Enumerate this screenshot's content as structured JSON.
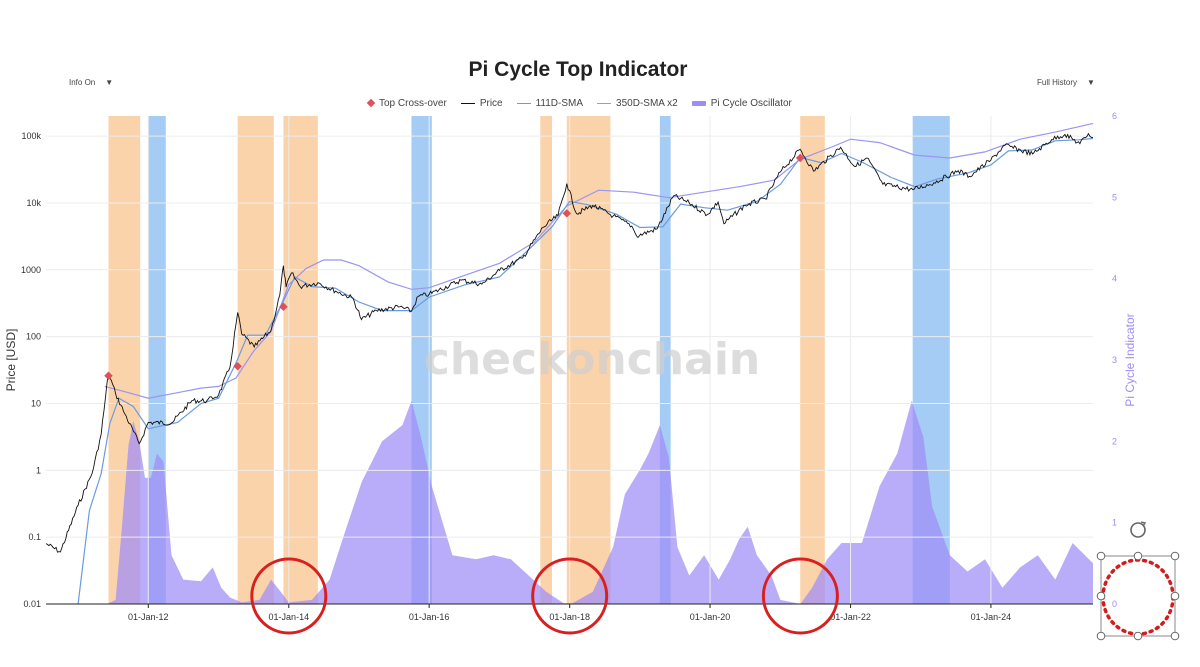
{
  "header": {
    "title": "Pi Cycle Top Indicator",
    "info_dropdown": "Info On",
    "range_dropdown": "Full History",
    "watermark": "checkonchain"
  },
  "chart_data": {
    "type": "line",
    "title": "Pi Cycle Top Indicator",
    "ylabel": "Price [USD]",
    "y2label": "Pi Cycle Indicator",
    "yscale": "log",
    "ylim": [
      0.01,
      200000
    ],
    "y2lim": [
      0,
      6
    ],
    "xlim": [
      "2010-07-18",
      "2025-06-15"
    ],
    "x_ticks": [
      "01-Jan-12",
      "01-Jan-14",
      "01-Jan-16",
      "01-Jan-18",
      "01-Jan-20",
      "01-Jan-22",
      "01-Jan-24"
    ],
    "y_ticks": [
      "0.01",
      "0.1",
      "1",
      "10",
      "100",
      "1000",
      "10k",
      "100k"
    ],
    "y2_ticks": [
      "0",
      "1",
      "2",
      "3",
      "4",
      "5",
      "6"
    ],
    "legend": [
      "Top Cross-over",
      "Price",
      "111D-SMA",
      "350D-SMA x2",
      "Pi Cycle Oscillator"
    ],
    "colors": {
      "price": "#111111",
      "sma111": "#6a9be0",
      "sma350x2": "#9b95f2",
      "oscillator": "#9e8cf7",
      "top_band": "#f9c48f",
      "bottom_band": "#7fb6f0",
      "crossover": "#e0505a",
      "annotation_circle": "#d92020"
    },
    "series": [
      {
        "name": "Price",
        "points": [
          [
            "2010-07-18",
            0.08
          ],
          [
            "2010-10-01",
            0.06
          ],
          [
            "2011-01-01",
            0.3
          ],
          [
            "2011-03-15",
            0.9
          ],
          [
            "2011-05-01",
            3.5
          ],
          [
            "2011-06-08",
            29
          ],
          [
            "2011-07-15",
            14
          ],
          [
            "2011-09-01",
            7
          ],
          [
            "2011-11-15",
            2.5
          ],
          [
            "2012-01-01",
            5.2
          ],
          [
            "2012-05-01",
            5.1
          ],
          [
            "2012-08-15",
            11
          ],
          [
            "2012-11-01",
            11
          ],
          [
            "2013-01-01",
            13.5
          ],
          [
            "2013-03-01",
            35
          ],
          [
            "2013-04-10",
            230
          ],
          [
            "2013-05-01",
            110
          ],
          [
            "2013-07-05",
            70
          ],
          [
            "2013-10-01",
            125
          ],
          [
            "2013-11-15",
            420
          ],
          [
            "2013-12-04",
            1150
          ],
          [
            "2013-12-18",
            550
          ],
          [
            "2014-01-15",
            900
          ],
          [
            "2014-03-01",
            560
          ],
          [
            "2014-06-01",
            640
          ],
          [
            "2014-09-01",
            480
          ],
          [
            "2014-12-01",
            375
          ],
          [
            "2015-01-14",
            180
          ],
          [
            "2015-04-01",
            245
          ],
          [
            "2015-08-01",
            280
          ],
          [
            "2015-10-01",
            240
          ],
          [
            "2015-11-05",
            400
          ],
          [
            "2016-01-01",
            430
          ],
          [
            "2016-06-15",
            700
          ],
          [
            "2016-10-01",
            610
          ],
          [
            "2017-01-01",
            980
          ],
          [
            "2017-05-01",
            1500
          ],
          [
            "2017-08-15",
            4300
          ],
          [
            "2017-11-01",
            6500
          ],
          [
            "2017-12-17",
            19500
          ],
          [
            "2018-02-06",
            6900
          ],
          [
            "2018-05-01",
            9200
          ],
          [
            "2018-08-15",
            6400
          ],
          [
            "2018-11-20",
            4500
          ],
          [
            "2018-12-15",
            3200
          ],
          [
            "2019-04-01",
            4100
          ],
          [
            "2019-06-26",
            12800
          ],
          [
            "2019-09-15",
            10000
          ],
          [
            "2019-12-17",
            6700
          ],
          [
            "2020-02-12",
            10300
          ],
          [
            "2020-03-13",
            4900
          ],
          [
            "2020-07-01",
            9200
          ],
          [
            "2020-10-15",
            11500
          ],
          [
            "2020-12-31",
            29000
          ],
          [
            "2021-04-14",
            63500
          ],
          [
            "2021-06-22",
            30000
          ],
          [
            "2021-11-10",
            68000
          ],
          [
            "2022-01-24",
            35000
          ],
          [
            "2022-03-28",
            47000
          ],
          [
            "2022-06-18",
            19000
          ],
          [
            "2022-11-21",
            15800
          ],
          [
            "2023-03-10",
            20000
          ],
          [
            "2023-07-15",
            30500
          ],
          [
            "2023-09-11",
            25000
          ],
          [
            "2024-01-01",
            44000
          ],
          [
            "2024-03-14",
            73000
          ],
          [
            "2024-08-05",
            54000
          ],
          [
            "2024-11-12",
            89000
          ],
          [
            "2025-01-20",
            106000
          ],
          [
            "2025-04-08",
            77000
          ],
          [
            "2025-05-22",
            109000
          ],
          [
            "2025-06-15",
            95000
          ]
        ]
      },
      {
        "name": "111D-SMA",
        "points": [
          [
            "2011-01-01",
            0.01
          ],
          [
            "2011-03-01",
            0.25
          ],
          [
            "2011-05-01",
            0.9
          ],
          [
            "2011-06-15",
            5
          ],
          [
            "2011-08-01",
            12
          ],
          [
            "2011-10-15",
            9
          ],
          [
            "2012-01-01",
            4.2
          ],
          [
            "2012-06-01",
            5.2
          ],
          [
            "2012-10-01",
            10
          ],
          [
            "2013-01-01",
            12
          ],
          [
            "2013-04-01",
            40
          ],
          [
            "2013-06-01",
            105
          ],
          [
            "2013-09-01",
            105
          ],
          [
            "2013-12-01",
            330
          ],
          [
            "2014-02-01",
            780
          ],
          [
            "2014-05-01",
            560
          ],
          [
            "2014-09-01",
            530
          ],
          [
            "2015-01-01",
            330
          ],
          [
            "2015-05-01",
            245
          ],
          [
            "2015-10-01",
            245
          ],
          [
            "2016-01-01",
            390
          ],
          [
            "2016-07-01",
            590
          ],
          [
            "2017-01-01",
            780
          ],
          [
            "2017-06-01",
            2000
          ],
          [
            "2017-10-01",
            4400
          ],
          [
            "2017-12-31",
            10500
          ],
          [
            "2018-04-01",
            9500
          ],
          [
            "2018-09-01",
            6800
          ],
          [
            "2019-01-01",
            4300
          ],
          [
            "2019-05-01",
            4400
          ],
          [
            "2019-08-01",
            9600
          ],
          [
            "2019-12-01",
            8500
          ],
          [
            "2020-04-01",
            7800
          ],
          [
            "2020-09-01",
            10500
          ],
          [
            "2021-01-01",
            19000
          ],
          [
            "2021-04-15",
            48000
          ],
          [
            "2021-08-01",
            40000
          ],
          [
            "2021-11-15",
            55000
          ],
          [
            "2022-03-01",
            41000
          ],
          [
            "2022-08-01",
            24000
          ],
          [
            "2022-12-01",
            17500
          ],
          [
            "2023-04-01",
            23000
          ],
          [
            "2023-09-01",
            28000
          ],
          [
            "2024-01-01",
            37000
          ],
          [
            "2024-04-01",
            60000
          ],
          [
            "2024-08-01",
            62000
          ],
          [
            "2024-12-01",
            85000
          ],
          [
            "2025-04-01",
            88000
          ],
          [
            "2025-06-15",
            92000
          ]
        ]
      },
      {
        "name": "350D-SMA x2",
        "points": [
          [
            "2011-05-20",
            18
          ],
          [
            "2011-09-01",
            15
          ],
          [
            "2012-01-01",
            12
          ],
          [
            "2012-06-01",
            14.5
          ],
          [
            "2012-10-01",
            17
          ],
          [
            "2013-01-01",
            18
          ],
          [
            "2013-04-01",
            24
          ],
          [
            "2013-07-01",
            60
          ],
          [
            "2013-10-01",
            120
          ],
          [
            "2014-01-01",
            600
          ],
          [
            "2014-04-01",
            1050
          ],
          [
            "2014-07-01",
            1400
          ],
          [
            "2014-10-01",
            1400
          ],
          [
            "2015-01-01",
            1150
          ],
          [
            "2015-06-01",
            660
          ],
          [
            "2015-10-01",
            510
          ],
          [
            "2016-01-01",
            540
          ],
          [
            "2016-07-01",
            820
          ],
          [
            "2017-01-01",
            1250
          ],
          [
            "2017-07-01",
            2600
          ],
          [
            "2017-12-17",
            9000
          ],
          [
            "2018-06-01",
            15500
          ],
          [
            "2018-12-01",
            14500
          ],
          [
            "2019-06-01",
            12000
          ],
          [
            "2019-12-01",
            14500
          ],
          [
            "2020-06-01",
            17500
          ],
          [
            "2020-12-01",
            22000
          ],
          [
            "2021-04-14",
            45000
          ],
          [
            "2021-10-01",
            70000
          ],
          [
            "2022-01-01",
            90000
          ],
          [
            "2022-06-01",
            80000
          ],
          [
            "2022-12-01",
            52000
          ],
          [
            "2023-06-01",
            47000
          ],
          [
            "2023-12-01",
            58000
          ],
          [
            "2024-06-01",
            90000
          ],
          [
            "2024-12-01",
            115000
          ],
          [
            "2025-06-15",
            155000
          ]
        ]
      },
      {
        "name": "Pi Cycle Oscillator",
        "points": [
          [
            "2011-06-01",
            0
          ],
          [
            "2011-07-15",
            0.05
          ],
          [
            "2011-08-15",
            0.9
          ],
          [
            "2011-09-20",
            1.95
          ],
          [
            "2011-10-15",
            2.25
          ],
          [
            "2011-11-15",
            2.0
          ],
          [
            "2011-12-15",
            1.55
          ],
          [
            "2012-01-15",
            1.55
          ],
          [
            "2012-02-15",
            1.85
          ],
          [
            "2012-03-20",
            1.75
          ],
          [
            "2012-05-01",
            0.6
          ],
          [
            "2012-07-01",
            0.3
          ],
          [
            "2012-10-01",
            0.28
          ],
          [
            "2012-12-01",
            0.45
          ],
          [
            "2013-01-15",
            0.2
          ],
          [
            "2013-03-01",
            0.08
          ],
          [
            "2013-05-01",
            0.02
          ],
          [
            "2013-08-01",
            0.05
          ],
          [
            "2013-10-01",
            0.3
          ],
          [
            "2013-11-20",
            0.15
          ],
          [
            "2014-01-01",
            0.02
          ],
          [
            "2014-05-01",
            0.05
          ],
          [
            "2014-08-01",
            0.3
          ],
          [
            "2014-10-15",
            0.85
          ],
          [
            "2015-01-15",
            1.5
          ],
          [
            "2015-05-01",
            2.0
          ],
          [
            "2015-08-15",
            2.2
          ],
          [
            "2015-10-01",
            2.5
          ],
          [
            "2015-11-15",
            2.1
          ],
          [
            "2016-01-15",
            1.45
          ],
          [
            "2016-05-01",
            0.6
          ],
          [
            "2016-09-01",
            0.55
          ],
          [
            "2016-12-01",
            0.6
          ],
          [
            "2017-03-01",
            0.55
          ],
          [
            "2017-06-01",
            0.35
          ],
          [
            "2017-09-01",
            0.15
          ],
          [
            "2017-12-01",
            0.01
          ],
          [
            "2018-01-15",
            0.01
          ],
          [
            "2018-05-01",
            0.15
          ],
          [
            "2018-08-15",
            0.7
          ],
          [
            "2018-10-15",
            1.35
          ],
          [
            "2019-01-01",
            1.65
          ],
          [
            "2019-02-15",
            1.85
          ],
          [
            "2019-04-15",
            2.2
          ],
          [
            "2019-06-01",
            1.8
          ],
          [
            "2019-07-15",
            0.7
          ],
          [
            "2019-09-15",
            0.35
          ],
          [
            "2019-12-01",
            0.6
          ],
          [
            "2020-02-15",
            0.3
          ],
          [
            "2020-04-15",
            0.55
          ],
          [
            "2020-06-01",
            0.8
          ],
          [
            "2020-07-15",
            0.95
          ],
          [
            "2020-09-01",
            0.6
          ],
          [
            "2020-11-15",
            0.35
          ],
          [
            "2021-01-01",
            0.05
          ],
          [
            "2021-04-15",
            0.0
          ],
          [
            "2021-06-15",
            0.2
          ],
          [
            "2021-09-01",
            0.55
          ],
          [
            "2021-11-15",
            0.75
          ],
          [
            "2022-03-01",
            0.75
          ],
          [
            "2022-06-01",
            1.45
          ],
          [
            "2022-09-01",
            1.85
          ],
          [
            "2022-11-15",
            2.5
          ],
          [
            "2023-01-15",
            2.05
          ],
          [
            "2023-03-01",
            1.2
          ],
          [
            "2023-06-01",
            0.6
          ],
          [
            "2023-09-01",
            0.4
          ],
          [
            "2023-12-01",
            0.55
          ],
          [
            "2024-03-01",
            0.2
          ],
          [
            "2024-06-01",
            0.45
          ],
          [
            "2024-09-01",
            0.6
          ],
          [
            "2024-12-01",
            0.3
          ],
          [
            "2025-03-01",
            0.75
          ],
          [
            "2025-06-15",
            0.5
          ]
        ]
      }
    ],
    "top_crossovers": [
      {
        "date": "2011-06-08",
        "price": 26
      },
      {
        "date": "2013-04-10",
        "price": 36
      },
      {
        "date": "2013-12-04",
        "price": 280
      },
      {
        "date": "2017-12-17",
        "price": 7000
      },
      {
        "date": "2021-04-14",
        "price": 47000
      }
    ],
    "top_bands": [
      [
        "2011-06-08",
        "2011-11-20"
      ],
      [
        "2013-04-10",
        "2013-10-15"
      ],
      [
        "2013-12-04",
        "2014-06-01"
      ],
      [
        "2017-08-01",
        "2017-10-01"
      ],
      [
        "2017-12-17",
        "2018-08-01"
      ],
      [
        "2021-04-14",
        "2021-08-20"
      ]
    ],
    "bottom_bands": [
      [
        "2012-01-01",
        "2012-04-01"
      ],
      [
        "2015-10-01",
        "2016-01-15"
      ],
      [
        "2019-04-15",
        "2019-06-10"
      ],
      [
        "2022-11-20",
        "2023-06-01"
      ]
    ],
    "highlight_circles": [
      {
        "date": "2014-01-01",
        "value": 0
      },
      {
        "date": "2018-01-01",
        "value": 0
      },
      {
        "date": "2021-04-15",
        "value": 0
      }
    ]
  }
}
